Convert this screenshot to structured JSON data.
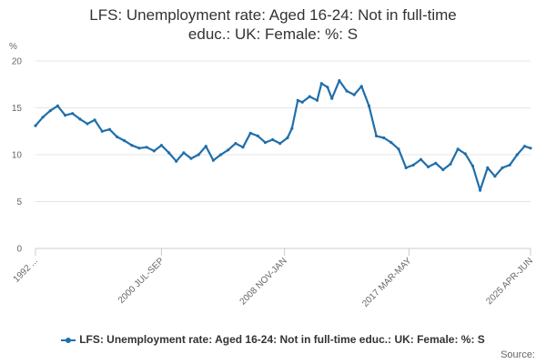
{
  "chart_data": {
    "type": "line",
    "title_lines": [
      "LFS: Unemployment rate: Aged 16-24: Not in full-time",
      "educ.: UK: Female: %: S"
    ],
    "ylabel": "%",
    "ylim": [
      0,
      20
    ],
    "yticks": [
      0,
      5,
      10,
      15,
      20
    ],
    "xticks": [
      "1992 ...",
      "2000 JUL-SEP",
      "2008 NOV-JAN",
      "2017 MAR-MAY",
      "2025 APR-JUN"
    ],
    "xtick_positions": [
      1992.0,
      2000.5,
      2008.8,
      2017.2,
      2025.4
    ],
    "xlim": [
      1992.0,
      2025.4
    ],
    "grid": "horizontal",
    "legend_position": "bottom",
    "color": "#1f6fab",
    "series": [
      {
        "name": "LFS: Unemployment rate: Aged 16-24: Not in full-time educ.: UK: Female: %: S",
        "x": [
          1992.0,
          1992.5,
          1993.0,
          1993.5,
          1994.0,
          1994.5,
          1995.0,
          1995.5,
          1996.0,
          1996.5,
          1997.0,
          1997.5,
          1998.0,
          1998.5,
          1999.0,
          1999.5,
          2000.0,
          2000.5,
          2001.0,
          2001.5,
          2002.0,
          2002.5,
          2003.0,
          2003.5,
          2004.0,
          2004.5,
          2005.0,
          2005.5,
          2006.0,
          2006.5,
          2007.0,
          2007.5,
          2008.0,
          2008.5,
          2009.0,
          2009.3,
          2009.7,
          2010.0,
          2010.5,
          2011.0,
          2011.3,
          2011.7,
          2012.0,
          2012.5,
          2013.0,
          2013.5,
          2014.0,
          2014.5,
          2015.0,
          2015.5,
          2016.0,
          2016.5,
          2017.0,
          2017.5,
          2018.0,
          2018.5,
          2019.0,
          2019.5,
          2020.0,
          2020.5,
          2021.0,
          2021.5,
          2022.0,
          2022.5,
          2023.0,
          2023.5,
          2024.0,
          2024.5,
          2025.0,
          2025.4
        ],
        "y": [
          13.1,
          14.0,
          14.7,
          15.2,
          14.2,
          14.4,
          13.8,
          13.3,
          13.7,
          12.5,
          12.7,
          11.9,
          11.5,
          11.0,
          10.7,
          10.8,
          10.4,
          11.0,
          10.2,
          9.3,
          10.2,
          9.6,
          10.0,
          10.9,
          9.4,
          10.0,
          10.5,
          11.2,
          10.8,
          12.3,
          12.0,
          11.3,
          11.6,
          11.2,
          11.8,
          12.8,
          15.8,
          15.6,
          16.2,
          15.8,
          17.6,
          17.2,
          16.0,
          17.9,
          16.8,
          16.4,
          17.3,
          15.2,
          12.0,
          11.8,
          11.3,
          10.6,
          8.6,
          8.9,
          9.5,
          8.7,
          9.1,
          8.4,
          9.0,
          10.6,
          10.1,
          8.8,
          6.2,
          8.6,
          7.7,
          8.6,
          8.9,
          10.0,
          10.9,
          10.7
        ]
      }
    ]
  },
  "source_label": "Source:"
}
